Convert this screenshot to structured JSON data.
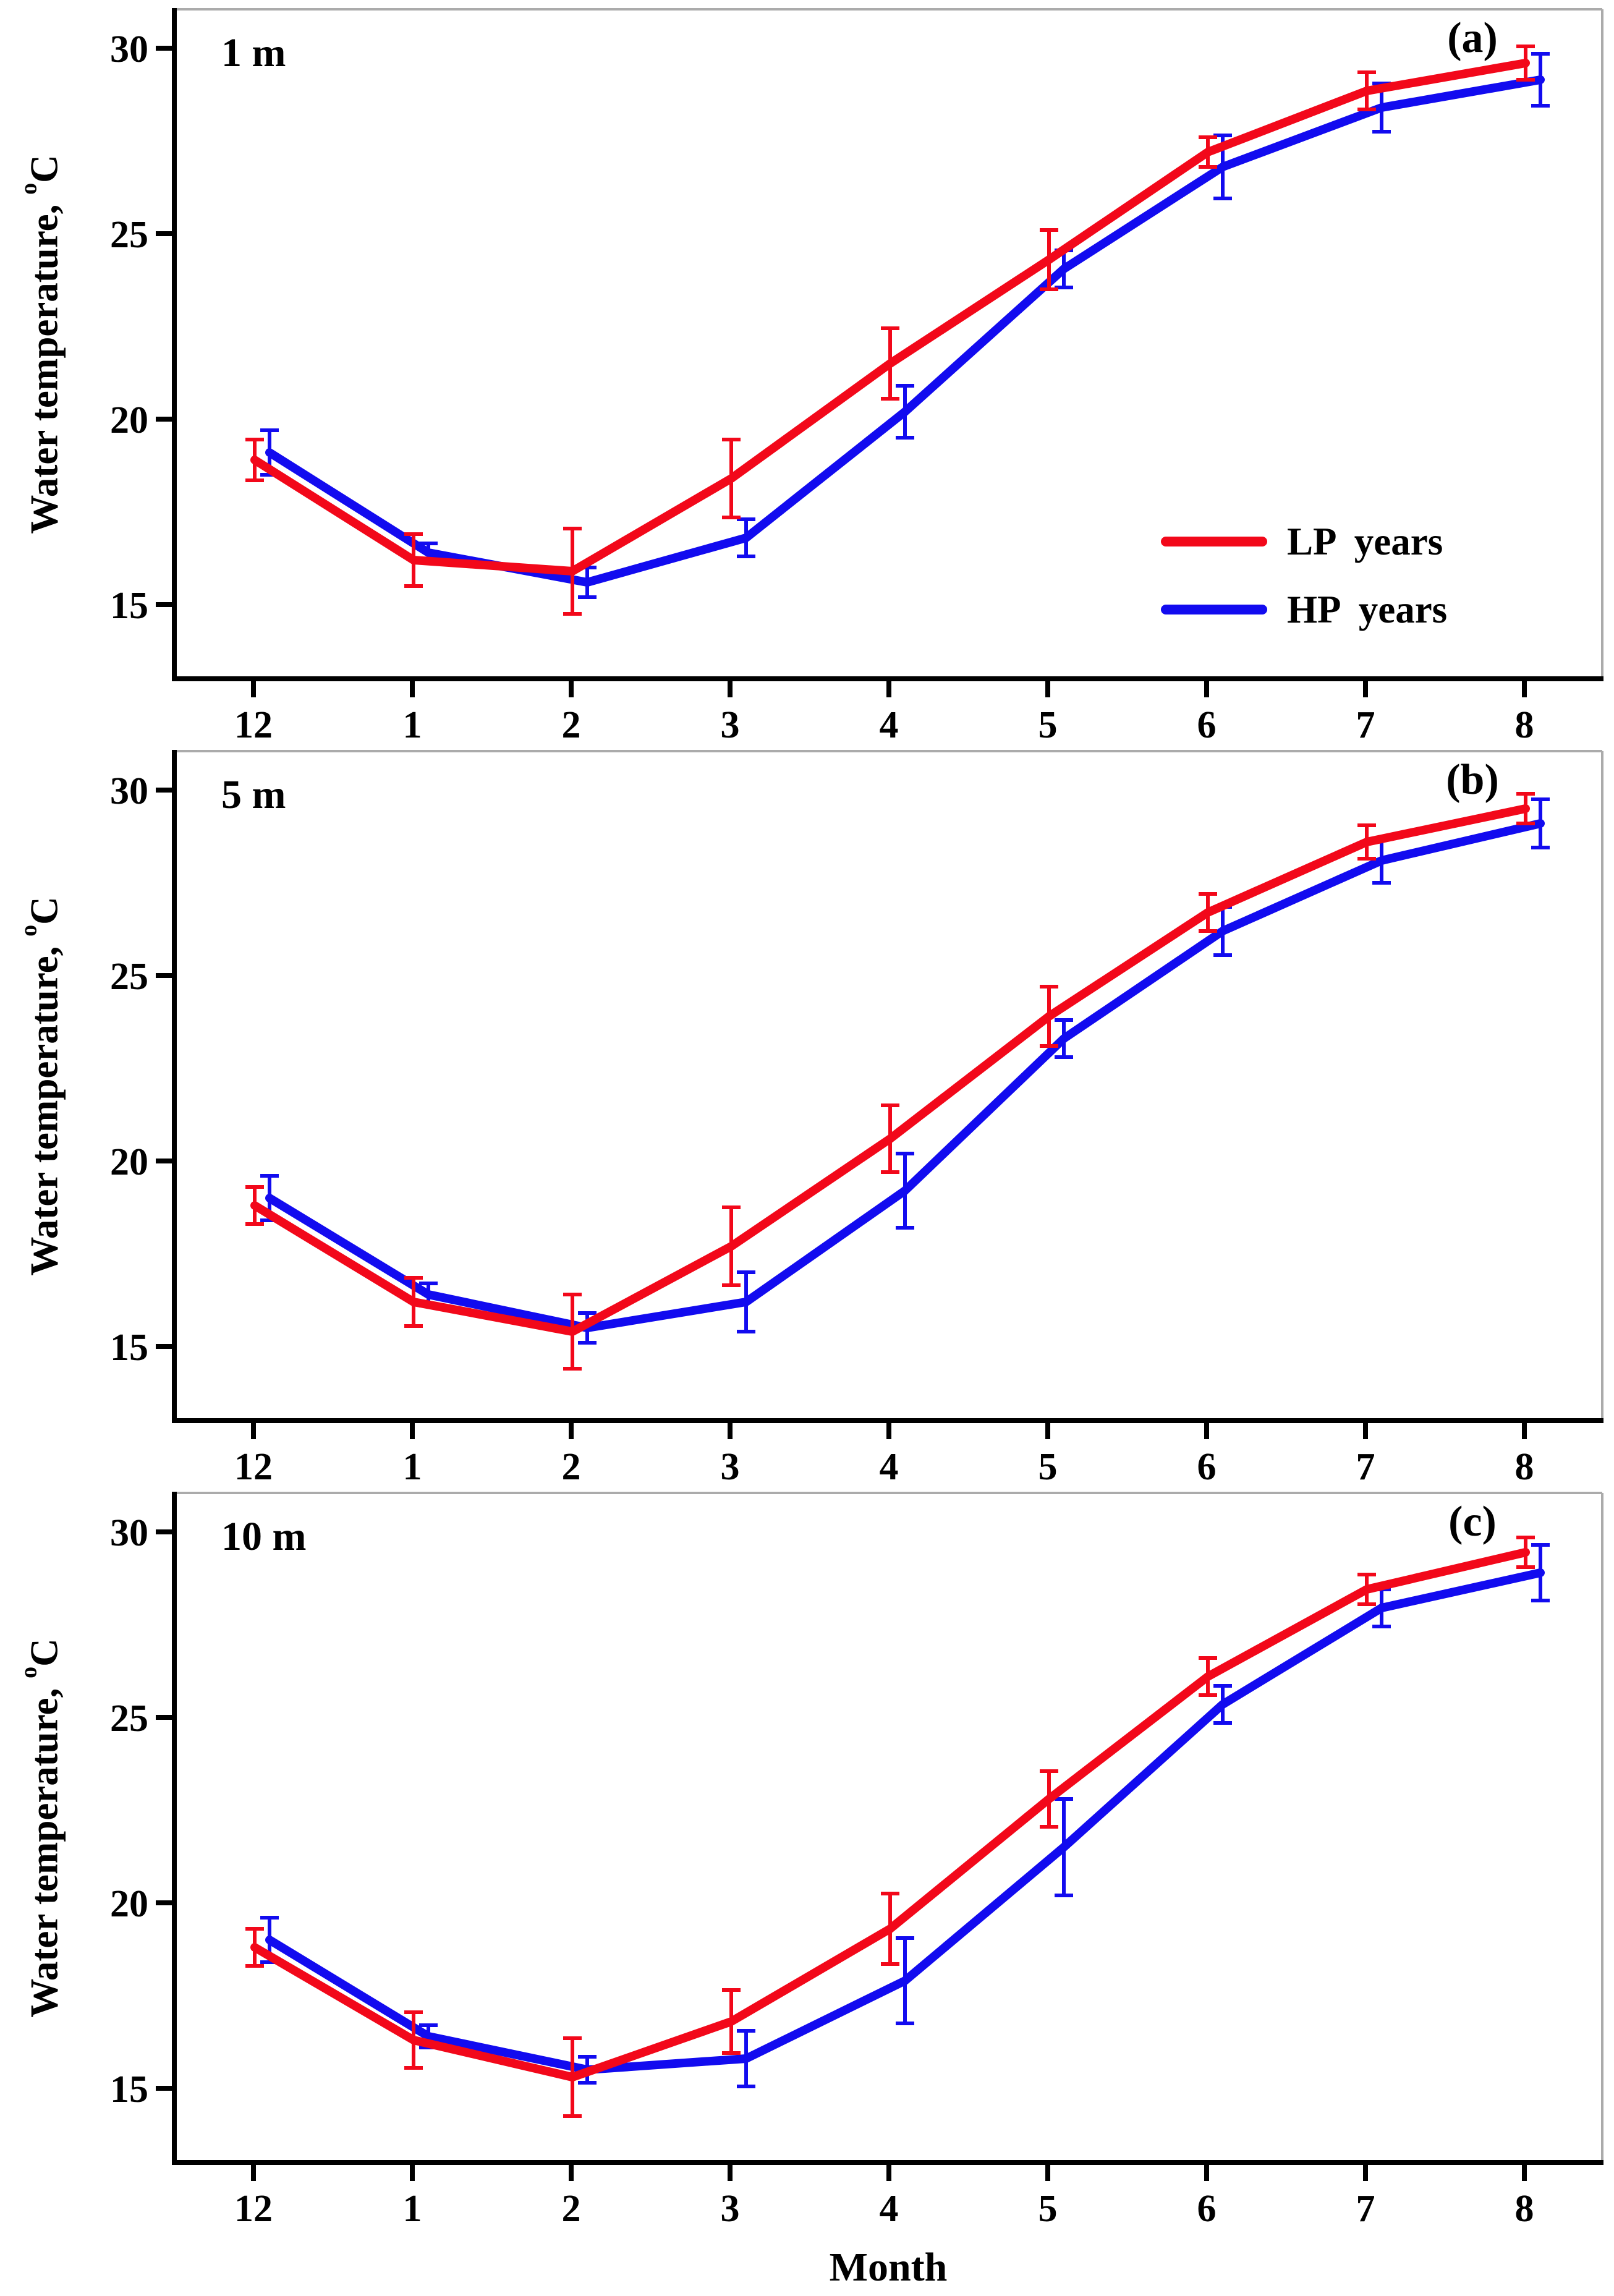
{
  "figure": {
    "xlabel": "Month",
    "ylabel": {
      "prefix": "Water temperature, ",
      "sup": "o",
      "suffix": "C"
    },
    "colors": {
      "lp": "#f2081a",
      "hp": "#120bef",
      "axis": "#000000",
      "frame": "#ababab"
    }
  },
  "chart_data": [
    {
      "type": "line",
      "panel_label": "(a)",
      "depth_label": "1 m",
      "categories": [
        "12",
        "1",
        "2",
        "3",
        "4",
        "5",
        "6",
        "7",
        "8"
      ],
      "xlabel": "Month",
      "ylabel": "Water temperature, oC",
      "ylim": [
        13,
        31.05
      ],
      "yticks": [
        15,
        20,
        25,
        30
      ],
      "grid": false,
      "legend_position": "inside-right-middle",
      "series": [
        {
          "name": "LP years",
          "color": "#f2081a",
          "values": [
            18.9,
            16.2,
            15.9,
            18.4,
            21.5,
            24.3,
            27.2,
            28.85,
            29.6
          ],
          "errors": [
            0.55,
            0.7,
            1.15,
            1.05,
            0.95,
            0.8,
            0.4,
            0.5,
            0.45
          ]
        },
        {
          "name": "HP years",
          "color": "#120bef",
          "values": [
            19.1,
            16.4,
            15.6,
            16.8,
            20.2,
            24.05,
            26.8,
            28.4,
            29.15
          ],
          "errors": [
            0.6,
            0.25,
            0.4,
            0.5,
            0.7,
            0.5,
            0.85,
            0.65,
            0.7
          ]
        }
      ]
    },
    {
      "type": "line",
      "panel_label": "(b)",
      "depth_label": "5 m",
      "categories": [
        "12",
        "1",
        "2",
        "3",
        "4",
        "5",
        "6",
        "7",
        "8"
      ],
      "xlabel": "Month",
      "ylabel": "Water temperature, oC",
      "ylim": [
        13,
        31.05
      ],
      "yticks": [
        15,
        20,
        25,
        30
      ],
      "grid": false,
      "legend_position": "none",
      "series": [
        {
          "name": "LP years",
          "color": "#f2081a",
          "values": [
            18.8,
            16.2,
            15.4,
            17.7,
            20.6,
            23.9,
            26.7,
            28.6,
            29.5
          ],
          "errors": [
            0.5,
            0.65,
            1.0,
            1.05,
            0.9,
            0.8,
            0.5,
            0.45,
            0.4
          ]
        },
        {
          "name": "HP years",
          "color": "#120bef",
          "values": [
            19.0,
            16.4,
            15.5,
            16.2,
            19.2,
            23.3,
            26.2,
            28.1,
            29.1
          ],
          "errors": [
            0.6,
            0.3,
            0.4,
            0.8,
            1.0,
            0.5,
            0.65,
            0.6,
            0.65
          ]
        }
      ]
    },
    {
      "type": "line",
      "panel_label": "(c)",
      "depth_label": "10 m",
      "categories": [
        "12",
        "1",
        "2",
        "3",
        "4",
        "5",
        "6",
        "7",
        "8"
      ],
      "xlabel": "Month",
      "ylabel": "Water temperature, oC",
      "ylim": [
        13,
        31.05
      ],
      "yticks": [
        15,
        20,
        25,
        30
      ],
      "grid": false,
      "legend_position": "none",
      "series": [
        {
          "name": "LP years",
          "color": "#f2081a",
          "values": [
            18.8,
            16.3,
            15.3,
            16.8,
            19.3,
            22.8,
            26.1,
            28.45,
            29.45
          ],
          "errors": [
            0.5,
            0.75,
            1.05,
            0.85,
            0.95,
            0.75,
            0.5,
            0.4,
            0.4
          ]
        },
        {
          "name": "HP years",
          "color": "#120bef",
          "values": [
            19.0,
            16.4,
            15.5,
            15.8,
            17.9,
            21.5,
            25.35,
            27.95,
            28.9
          ],
          "errors": [
            0.6,
            0.3,
            0.35,
            0.75,
            1.15,
            1.3,
            0.5,
            0.5,
            0.75
          ]
        }
      ]
    }
  ]
}
